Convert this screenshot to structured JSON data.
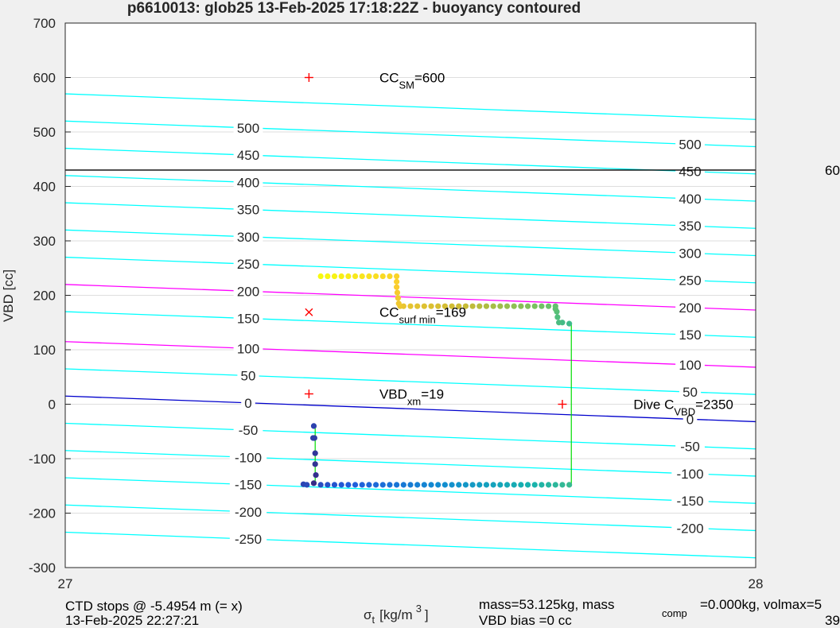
{
  "chart_data": {
    "type": "scatter",
    "title": "p6610013: glob25 13-Feb-2025 17:18:22Z - buoyancy contoured",
    "xlabel_symbol": "σ",
    "xlabel_sub": "t",
    "xlabel_unit_a": "[kg/m",
    "xlabel_unit_sup": "3",
    "xlabel_unit_b": "]",
    "ylabel": "VBD [cc]",
    "xlim": [
      27,
      28
    ],
    "ylim": [
      -300,
      700
    ],
    "x_ticks": [
      "27",
      "28"
    ],
    "y_ticks": [
      "-300",
      "-200",
      "-100",
      "0",
      "100",
      "200",
      "300",
      "400",
      "500",
      "600",
      "700"
    ],
    "grid": true,
    "contour_levels": [
      {
        "level": 500,
        "label": "500",
        "color": "#00ffff"
      },
      {
        "level": 450,
        "label": "450",
        "color": "#00ffff"
      },
      {
        "level": 400,
        "label": "400",
        "color": "#00ffff"
      },
      {
        "level": 350,
        "label": "350",
        "color": "#00ffff"
      },
      {
        "level": 300,
        "label": "300",
        "color": "#00ffff"
      },
      {
        "level": 250,
        "label": "250",
        "color": "#00ffff"
      },
      {
        "level": 200,
        "label": "200",
        "color": "#ff00ff"
      },
      {
        "level": 150,
        "label": "150",
        "color": "#00ffff"
      },
      {
        "level": 100,
        "label": "100",
        "color": "#ff00ff"
      },
      {
        "level": 50,
        "label": "50",
        "color": "#00ffff"
      },
      {
        "level": 0,
        "label": "0",
        "color": "#0000cc"
      },
      {
        "level": -50,
        "label": "-50",
        "color": "#00ffff"
      },
      {
        "level": -100,
        "label": "-100",
        "color": "#00ffff"
      },
      {
        "level": -150,
        "label": "-150",
        "color": "#00ffff"
      },
      {
        "level": -200,
        "label": "-200",
        "color": "#00ffff"
      },
      {
        "level": -250,
        "label": "-250",
        "color": "#00ffff"
      }
    ],
    "extra_levels": [
      {
        "level": 550,
        "color": "#00ffff"
      }
    ],
    "contour_left_labels": [
      "500",
      "450",
      "400",
      "350",
      "300",
      "250",
      "200",
      "150",
      "100",
      "50",
      "0",
      "-50",
      "-100",
      "-150",
      "-200",
      "-250"
    ],
    "contour_right_labels": [
      "500",
      "450",
      "400",
      "350",
      "300",
      "250",
      "200",
      "150",
      "100",
      "50",
      "0",
      "-50",
      "-100",
      "-150",
      "-200"
    ],
    "contour_slope_per_sigma": -47,
    "horizontal_line": {
      "y": 430,
      "color": "#000000"
    },
    "markers": [
      {
        "x": 27.353,
        "y": 600,
        "symbol": "+",
        "color": "#ff0000"
      },
      {
        "x": 27.353,
        "y": 169,
        "symbol": "x",
        "color": "#ff0000"
      },
      {
        "x": 27.353,
        "y": 19,
        "symbol": "+",
        "color": "#ff0000"
      },
      {
        "x": 27.72,
        "y": 0,
        "symbol": "+",
        "color": "#ff0000"
      }
    ],
    "annotations": [
      {
        "base": "CC",
        "sub": "SM",
        "rest": "=600",
        "x": 27.455,
        "y": 600
      },
      {
        "base": "CC",
        "sub": "surf min",
        "rest": "=169",
        "x": 27.455,
        "y": 169
      },
      {
        "base": "VBD",
        "sub": "xm",
        "rest": "=19",
        "x": 27.455,
        "y": 19
      },
      {
        "base": "Dive C",
        "sub": "VBD",
        "rest": "=2350",
        "x": 27.823,
        "y": 0
      }
    ],
    "dive_points": [
      {
        "x": 27.36,
        "y": -145
      },
      {
        "x": 27.363,
        "y": -130
      },
      {
        "x": 27.362,
        "y": -110
      },
      {
        "x": 27.362,
        "y": -90
      },
      {
        "x": 27.361,
        "y": -62
      },
      {
        "x": 27.359,
        "y": -62
      },
      {
        "x": 27.36,
        "y": -40
      },
      {
        "x": 27.345,
        "y": -147
      },
      {
        "x": 27.35,
        "y": -148
      },
      {
        "x": 27.37,
        "y": -148
      },
      {
        "x": 27.38,
        "y": -148
      },
      {
        "x": 27.39,
        "y": -148
      },
      {
        "x": 27.4,
        "y": -148
      },
      {
        "x": 27.41,
        "y": -148
      },
      {
        "x": 27.42,
        "y": -148
      },
      {
        "x": 27.43,
        "y": -148
      },
      {
        "x": 27.44,
        "y": -148
      },
      {
        "x": 27.45,
        "y": -148
      },
      {
        "x": 27.46,
        "y": -148
      },
      {
        "x": 27.47,
        "y": -148
      },
      {
        "x": 27.48,
        "y": -148
      },
      {
        "x": 27.49,
        "y": -148
      },
      {
        "x": 27.5,
        "y": -148
      },
      {
        "x": 27.51,
        "y": -148
      },
      {
        "x": 27.52,
        "y": -148
      },
      {
        "x": 27.53,
        "y": -148
      },
      {
        "x": 27.54,
        "y": -148
      },
      {
        "x": 27.55,
        "y": -148
      },
      {
        "x": 27.56,
        "y": -148
      },
      {
        "x": 27.57,
        "y": -148
      },
      {
        "x": 27.58,
        "y": -148
      },
      {
        "x": 27.59,
        "y": -148
      },
      {
        "x": 27.6,
        "y": -148
      },
      {
        "x": 27.61,
        "y": -148
      },
      {
        "x": 27.62,
        "y": -148
      },
      {
        "x": 27.63,
        "y": -148
      },
      {
        "x": 27.64,
        "y": -148
      },
      {
        "x": 27.65,
        "y": -148
      },
      {
        "x": 27.66,
        "y": -148
      },
      {
        "x": 27.67,
        "y": -148
      },
      {
        "x": 27.68,
        "y": -148
      },
      {
        "x": 27.69,
        "y": -148
      },
      {
        "x": 27.7,
        "y": -148
      },
      {
        "x": 27.71,
        "y": -148
      },
      {
        "x": 27.72,
        "y": -148
      },
      {
        "x": 27.73,
        "y": -148
      }
    ],
    "climb_points": [
      {
        "x": 27.73,
        "y": 148
      },
      {
        "x": 27.72,
        "y": 150
      },
      {
        "x": 27.715,
        "y": 150
      },
      {
        "x": 27.713,
        "y": 160
      },
      {
        "x": 27.712,
        "y": 170
      },
      {
        "x": 27.71,
        "y": 175
      },
      {
        "x": 27.71,
        "y": 180
      },
      {
        "x": 27.7,
        "y": 180
      },
      {
        "x": 27.69,
        "y": 180
      },
      {
        "x": 27.68,
        "y": 180
      },
      {
        "x": 27.67,
        "y": 180
      },
      {
        "x": 27.66,
        "y": 180
      },
      {
        "x": 27.65,
        "y": 180
      },
      {
        "x": 27.64,
        "y": 180
      },
      {
        "x": 27.63,
        "y": 180
      },
      {
        "x": 27.62,
        "y": 180
      },
      {
        "x": 27.61,
        "y": 180
      },
      {
        "x": 27.6,
        "y": 180
      },
      {
        "x": 27.59,
        "y": 180
      },
      {
        "x": 27.58,
        "y": 180
      },
      {
        "x": 27.57,
        "y": 180
      },
      {
        "x": 27.56,
        "y": 180
      },
      {
        "x": 27.55,
        "y": 180
      },
      {
        "x": 27.54,
        "y": 180
      },
      {
        "x": 27.53,
        "y": 180
      },
      {
        "x": 27.52,
        "y": 180
      },
      {
        "x": 27.51,
        "y": 180
      },
      {
        "x": 27.5,
        "y": 180
      },
      {
        "x": 27.49,
        "y": 180
      },
      {
        "x": 27.485,
        "y": 180
      },
      {
        "x": 27.483,
        "y": 185
      },
      {
        "x": 27.482,
        "y": 195
      },
      {
        "x": 27.481,
        "y": 205
      },
      {
        "x": 27.48,
        "y": 215
      },
      {
        "x": 27.48,
        "y": 225
      },
      {
        "x": 27.48,
        "y": 235
      },
      {
        "x": 27.47,
        "y": 235
      },
      {
        "x": 27.46,
        "y": 235
      },
      {
        "x": 27.45,
        "y": 235
      },
      {
        "x": 27.44,
        "y": 235
      },
      {
        "x": 27.43,
        "y": 235
      },
      {
        "x": 27.42,
        "y": 235
      },
      {
        "x": 27.41,
        "y": 235
      },
      {
        "x": 27.4,
        "y": 235
      },
      {
        "x": 27.39,
        "y": 235
      },
      {
        "x": 27.38,
        "y": 235
      },
      {
        "x": 27.37,
        "y": 235
      }
    ],
    "connector": {
      "from": {
        "x": 27.733,
        "y": -148
      },
      "to": {
        "x": 27.733,
        "y": 148
      },
      "color": "#00dd00"
    },
    "dive_connector": {
      "from": {
        "x": 27.362,
        "y": -40
      },
      "to": {
        "x": 27.362,
        "y": -148
      },
      "color": "#00dd00"
    }
  },
  "footer": {
    "ctd_line1": "CTD stops @ -5.4954 m (= x)",
    "ctd_line2": "13-Feb-2025 22:27:21",
    "mass_text": "mass=53.125kg, mass",
    "mass_sub": "comp",
    "mass_rest": "=0.000kg, volmax=5",
    "vbd_bias": "VBD bias =0 cc",
    "right_fragment_top": "60",
    "right_fragment_bottom": "39"
  }
}
